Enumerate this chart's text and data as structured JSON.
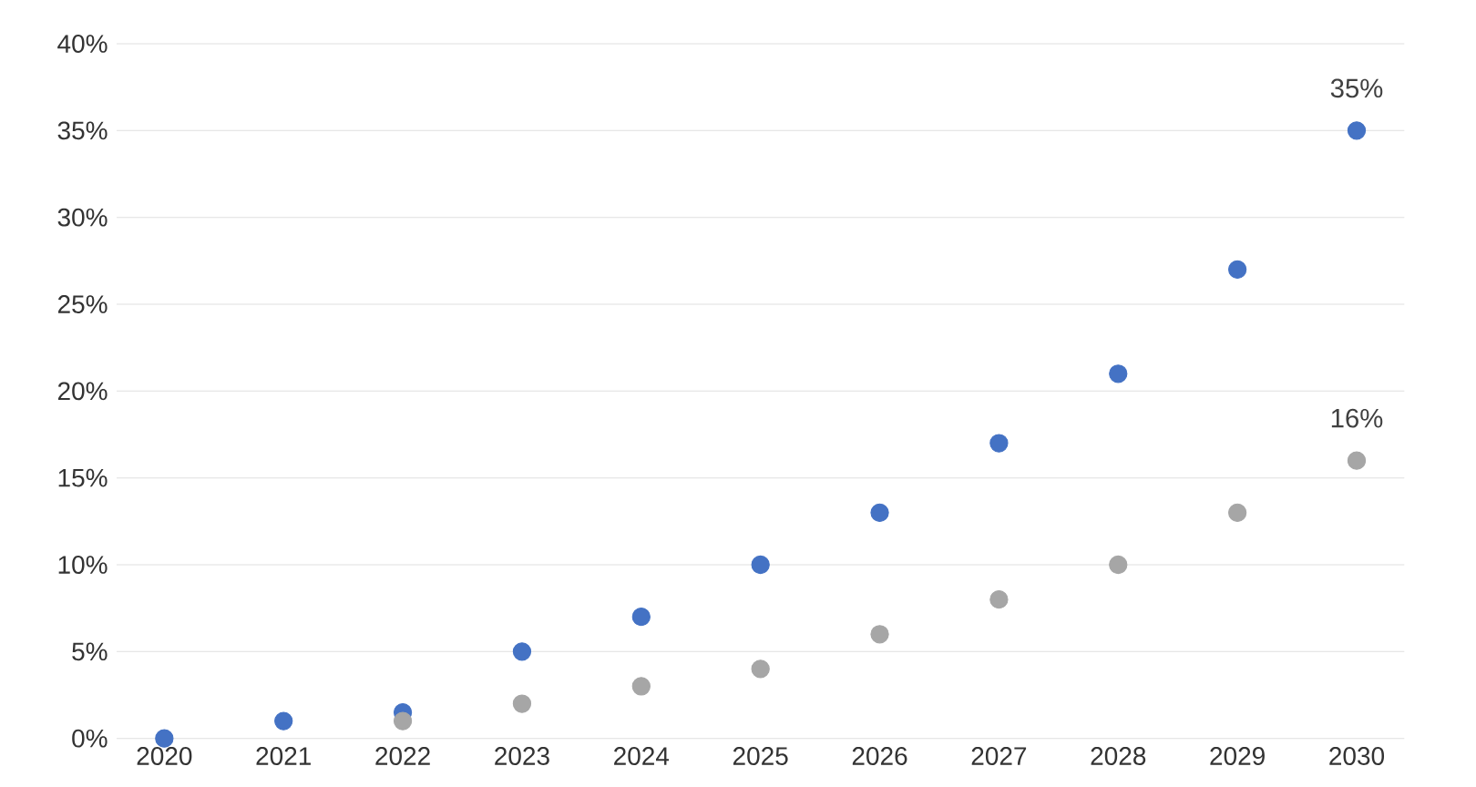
{
  "chart_data": {
    "type": "scatter",
    "categories": [
      "2020",
      "2021",
      "2022",
      "2023",
      "2024",
      "2025",
      "2026",
      "2027",
      "2028",
      "2029",
      "2030"
    ],
    "series": [
      {
        "color": "#4472c4",
        "values": [
          0,
          1,
          1.5,
          5,
          7,
          10,
          13,
          17,
          21,
          27,
          35
        ]
      },
      {
        "color": "#a6a6a6",
        "values": [
          null,
          null,
          1,
          2,
          3,
          4,
          6,
          8,
          10,
          13,
          16
        ]
      }
    ],
    "ylim": [
      0,
      40
    ],
    "yticks": [
      {
        "value": 0,
        "label": "0%"
      },
      {
        "value": 5,
        "label": "5%"
      },
      {
        "value": 10,
        "label": "10%"
      },
      {
        "value": 15,
        "label": "15%"
      },
      {
        "value": 20,
        "label": "20%"
      },
      {
        "value": 25,
        "label": "25%"
      },
      {
        "value": 30,
        "label": "30%"
      },
      {
        "value": 35,
        "label": "35%"
      },
      {
        "value": 40,
        "label": "40%"
      }
    ],
    "grid": "y",
    "marker": "circle",
    "annotations": [
      {
        "text": "35%",
        "x": "2030",
        "y": 35
      },
      {
        "text": "16%",
        "x": "2030",
        "y": 16
      }
    ]
  }
}
